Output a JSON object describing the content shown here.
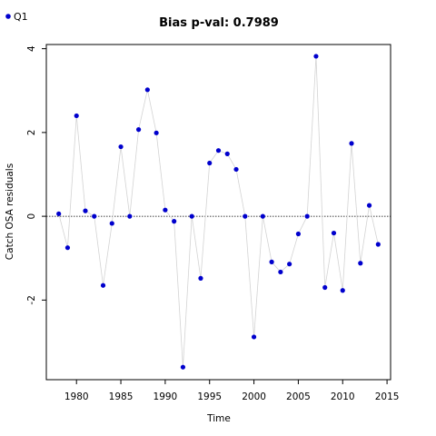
{
  "chart_data": {
    "type": "scatter",
    "title": "Bias p-val: 0.7989",
    "title_color": "#228B22",
    "xlabel": "Time",
    "ylabel": "Catch OSA residuals",
    "xlim": [
      1976.6,
      2015.4
    ],
    "ylim": [
      -3.9,
      4.1
    ],
    "x_ticks": [
      1980,
      1985,
      1990,
      1995,
      2000,
      2005,
      2010,
      2015
    ],
    "y_ticks": [
      -2,
      0,
      2,
      4
    ],
    "grid": false,
    "reference_line": 0,
    "legend_position": "top-left",
    "series": [
      {
        "name": "Q1",
        "color": "#0000CD",
        "line_color": "#d3d3d3",
        "x": [
          1978,
          1979,
          1980,
          1981,
          1982,
          1983,
          1984,
          1985,
          1986,
          1987,
          1988,
          1989,
          1990,
          1991,
          1992,
          1993,
          1994,
          1995,
          1996,
          1997,
          1998,
          1999,
          2000,
          2001,
          2002,
          2003,
          2004,
          2005,
          2006,
          2007,
          2008,
          2009,
          2010,
          2011,
          2012,
          2013,
          2014
        ],
        "y": [
          0.06,
          -0.75,
          2.4,
          0.13,
          0.0,
          -1.65,
          -0.17,
          1.66,
          0.0,
          2.07,
          3.02,
          1.99,
          0.15,
          -0.12,
          -3.6,
          0.0,
          -1.48,
          1.27,
          1.57,
          1.49,
          1.12,
          0.0,
          -2.88,
          0.0,
          -1.09,
          -1.33,
          -1.14,
          -0.42,
          0.0,
          3.82,
          -1.7,
          -0.4,
          -1.77,
          1.74,
          -1.12,
          0.26,
          -0.67
        ]
      }
    ]
  }
}
